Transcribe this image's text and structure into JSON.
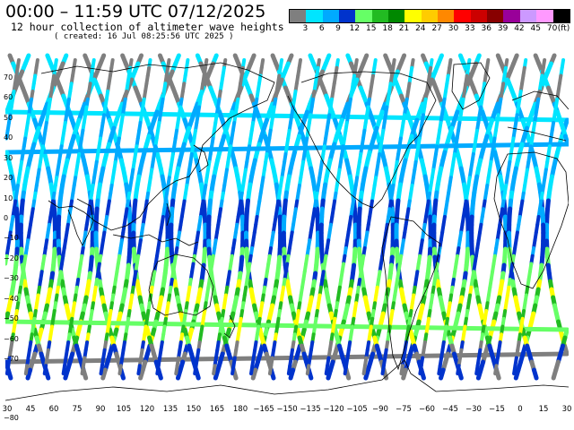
{
  "header": {
    "title": "00:00 – 11:59 UTC 07/12/2025",
    "subtitle": "12 hour collection of altimeter wave heights",
    "created": "( created: 16 Jul 08:25:56 UTC 2025 )"
  },
  "legend": {
    "unit": "(ft)",
    "labels": [
      "3",
      "6",
      "9",
      "12",
      "15",
      "18",
      "21",
      "24",
      "27",
      "30",
      "33",
      "36",
      "39",
      "42",
      "45",
      "70"
    ],
    "colors": [
      "#7f7f7f",
      "#00e5ff",
      "#00aaff",
      "#0033cc",
      "#66ff66",
      "#22bb22",
      "#008800",
      "#ffff00",
      "#ffcc00",
      "#ff8800",
      "#ff0000",
      "#cc0000",
      "#880000",
      "#990099",
      "#cc99ff",
      "#ff99ff",
      "#000000"
    ]
  },
  "map_colors": {
    "coast": "#000000",
    "background": "#ffffff"
  },
  "axes": {
    "lon_labels": [
      "30",
      "45",
      "60",
      "75",
      "90",
      "105",
      "120",
      "135",
      "150",
      "165",
      "180",
      "−165",
      "−150",
      "−135",
      "−120",
      "−105",
      "−90",
      "−75",
      "−60",
      "−45",
      "−30",
      "−15",
      "0",
      "15",
      "30"
    ],
    "lat_labels": [
      "70",
      "60",
      "50",
      "40",
      "30",
      "20",
      "10",
      "0",
      "−10",
      "−20",
      "−30",
      "−40",
      "−50",
      "−60",
      "−70"
    ],
    "bottom_left": "−80"
  }
}
